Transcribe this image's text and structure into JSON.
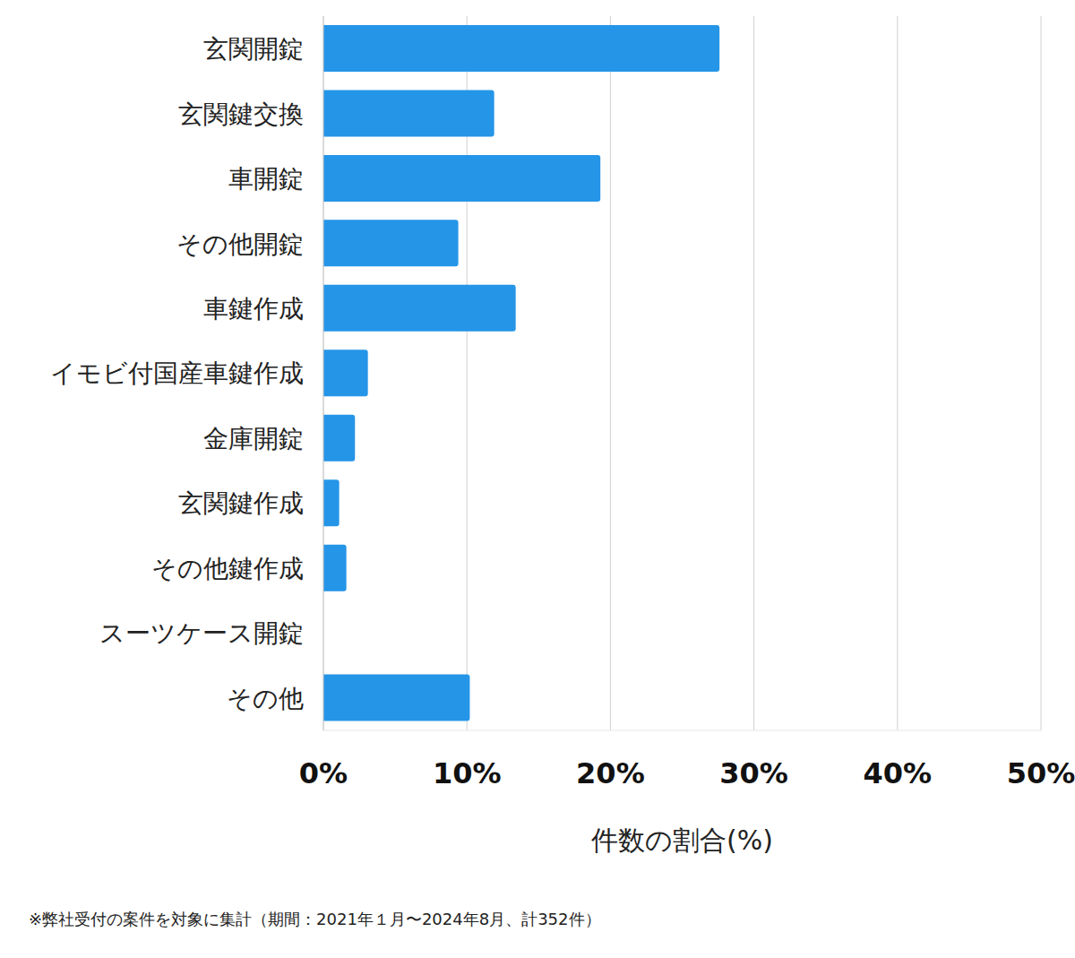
{
  "chart_data": {
    "type": "bar",
    "orientation": "horizontal",
    "categories": [
      "玄関開錠",
      "玄関鍵交換",
      "車開錠",
      "その他開錠",
      "車鍵作成",
      "イモビ付国産車鍵作成",
      "金庫開錠",
      "玄関鍵作成",
      "その他鍵作成",
      "スーツケース開錠",
      "その他"
    ],
    "values": [
      27.6,
      11.9,
      19.3,
      9.4,
      13.4,
      3.1,
      2.2,
      1.1,
      1.6,
      0,
      10.2
    ],
    "color": "#2595e8",
    "xlim": [
      0,
      50
    ],
    "xticks": [
      {
        "value": 0,
        "label": "0%"
      },
      {
        "value": 10,
        "label": "10%"
      },
      {
        "value": 20,
        "label": "20%"
      },
      {
        "value": 30,
        "label": "30%"
      },
      {
        "value": 40,
        "label": "40%"
      },
      {
        "value": 50,
        "label": "50%"
      }
    ],
    "x_label": "件数の割合(%)",
    "grid": true,
    "footnote": "※弊社受付の案件を対象に集計（期間：2021年１月〜2024年8月、計352件）"
  }
}
